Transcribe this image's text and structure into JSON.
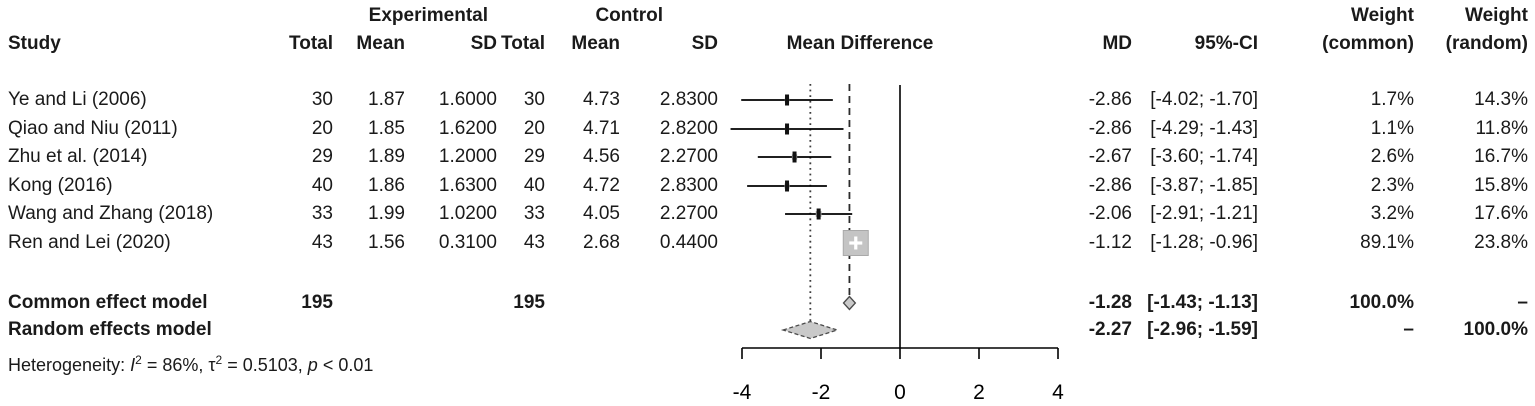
{
  "header": {
    "group_exp": "Experimental",
    "group_ctl": "Control",
    "weight_top1": "Weight",
    "weight_top2": "Weight",
    "study": "Study",
    "total1": "Total",
    "mean1": "Mean",
    "sd1": "SD",
    "total2": "Total",
    "mean2": "Mean",
    "sd2": "SD",
    "mean_difference": "Mean Difference",
    "md": "MD",
    "ci": "95%-CI",
    "weight_common": "(common)",
    "weight_random": "(random)"
  },
  "table": {
    "studies": [
      {
        "name": "Ye and Li (2006)",
        "total_exp": "30",
        "mean_exp": "1.87",
        "sd_exp": "1.6000",
        "total_ctl": "30",
        "mean_ctl": "4.73",
        "sd_ctl": "2.8300",
        "md": "-2.86",
        "ci": "[-4.02; -1.70]",
        "weight_common": "1.7%",
        "weight_random": "14.3%"
      },
      {
        "name": "Qiao and Niu (2011)",
        "total_exp": "20",
        "mean_exp": "1.85",
        "sd_exp": "1.6200",
        "total_ctl": "20",
        "mean_ctl": "4.71",
        "sd_ctl": "2.8200",
        "md": "-2.86",
        "ci": "[-4.29; -1.43]",
        "weight_common": "1.1%",
        "weight_random": "11.8%"
      },
      {
        "name": "Zhu et al. (2014)",
        "total_exp": "29",
        "mean_exp": "1.89",
        "sd_exp": "1.2000",
        "total_ctl": "29",
        "mean_ctl": "4.56",
        "sd_ctl": "2.2700",
        "md": "-2.67",
        "ci": "[-3.60; -1.74]",
        "weight_common": "2.6%",
        "weight_random": "16.7%"
      },
      {
        "name": "Kong (2016)",
        "total_exp": "40",
        "mean_exp": "1.86",
        "sd_exp": "1.6300",
        "total_ctl": "40",
        "mean_ctl": "4.72",
        "sd_ctl": "2.8300",
        "md": "-2.86",
        "ci": "[-3.87; -1.85]",
        "weight_common": "2.3%",
        "weight_random": "15.8%"
      },
      {
        "name": "Wang and Zhang (2018)",
        "total_exp": "33",
        "mean_exp": "1.99",
        "sd_exp": "1.0200",
        "total_ctl": "33",
        "mean_ctl": "4.05",
        "sd_ctl": "2.2700",
        "md": "-2.06",
        "ci": "[-2.91; -1.21]",
        "weight_common": "3.2%",
        "weight_random": "17.6%"
      },
      {
        "name": "Ren and Lei (2020)",
        "total_exp": "43",
        "mean_exp": "1.56",
        "sd_exp": "0.3100",
        "total_ctl": "43",
        "mean_ctl": "2.68",
        "sd_ctl": "0.4400",
        "md": "-1.12",
        "ci": "[-1.28; -0.96]",
        "weight_common": "89.1%",
        "weight_random": "23.8%"
      }
    ],
    "common": {
      "label": "Common effect model",
      "total_exp": "195",
      "total_ctl": "195",
      "md": "-1.28",
      "ci": "[-1.43; -1.13]",
      "weight_common": "100.0%",
      "weight_random": "–"
    },
    "random": {
      "label": "Random effects model",
      "md": "-2.27",
      "ci": "[-2.96; -1.59]",
      "weight_common": "–",
      "weight_random": "100.0%"
    }
  },
  "heterogeneity": {
    "label": "Heterogeneity:",
    "i_symbol": "I",
    "i_sup": "2",
    "seg1": "= 86%,",
    "tau_symbol": "τ",
    "tau_sup": "2",
    "seg2": "= 0.5103,",
    "p_symbol": "p",
    "seg3": "< 0.01"
  },
  "chart_data": {
    "type": "forest",
    "xlabel": "Mean Difference",
    "x_ticks": [
      -4,
      -2,
      0,
      2,
      4
    ],
    "x_range": [
      -4,
      4
    ],
    "zero_line": 0,
    "legend_position": "none",
    "studies": [
      {
        "name": "Ye and Li (2006)",
        "md": -2.86,
        "ci": [
          -4.02,
          -1.7
        ],
        "weight_common": 1.7,
        "weight_random": 14.3
      },
      {
        "name": "Qiao and Niu (2011)",
        "md": -2.86,
        "ci": [
          -4.29,
          -1.43
        ],
        "weight_common": 1.1,
        "weight_random": 11.8
      },
      {
        "name": "Zhu et al. (2014)",
        "md": -2.67,
        "ci": [
          -3.6,
          -1.74
        ],
        "weight_common": 2.6,
        "weight_random": 16.7
      },
      {
        "name": "Kong (2016)",
        "md": -2.86,
        "ci": [
          -3.87,
          -1.85
        ],
        "weight_common": 2.3,
        "weight_random": 15.8
      },
      {
        "name": "Wang and Zhang (2018)",
        "md": -2.06,
        "ci": [
          -2.91,
          -1.21
        ],
        "weight_common": 3.2,
        "weight_random": 17.6
      },
      {
        "name": "Ren and Lei (2020)",
        "md": -1.12,
        "ci": [
          -1.28,
          -0.96
        ],
        "weight_common": 89.1,
        "weight_random": 23.8
      }
    ],
    "common_effect": {
      "md": -1.28,
      "ci": [
        -1.43,
        -1.13
      ]
    },
    "random_effects": {
      "md": -2.27,
      "ci": [
        -2.96,
        -1.59
      ]
    },
    "heterogeneity": {
      "I2": "86%",
      "tau2": 0.5103,
      "p": "< 0.01"
    },
    "colors": {
      "square_fill": "#c4c4c4",
      "square_stroke": "#a9a9a9",
      "diamond_fill": "#c9c9c9",
      "diamond_stroke": "#4a4a4a",
      "line": "#000000"
    }
  }
}
